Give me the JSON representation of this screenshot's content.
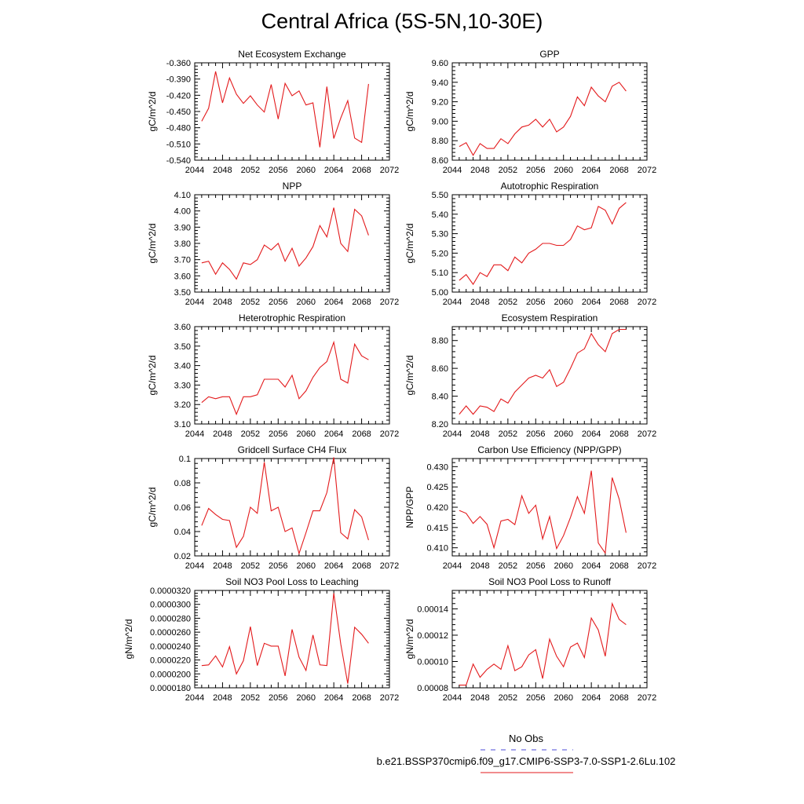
{
  "title": "Central Africa (5S-5N,10-30E)",
  "legend": {
    "items": [
      {
        "label": "No Obs",
        "color": "#4b4bd8",
        "style": "dashed"
      },
      {
        "label": "b.e21.BSSP370cmip6.f09_g17.CMIP6-SSP3-7.0-SSP1-2.6Lu.102",
        "color": "#e31a1c",
        "style": "solid"
      }
    ]
  },
  "series_color": "#e31a1c",
  "chart_data": [
    {
      "type": "line",
      "title": "Net Ecosystem Exchange",
      "ylabel": "gC/m^2/d",
      "xlim": [
        2044,
        2072
      ],
      "ylim": [
        -0.54,
        -0.36
      ],
      "xticks": [
        2044,
        2048,
        2052,
        2056,
        2060,
        2064,
        2068,
        2072
      ],
      "yticks": [
        "-0.360",
        "-0.390",
        "-0.420",
        "-0.450",
        "-0.480",
        "-0.510",
        "-0.540"
      ],
      "ytick_values": [
        -0.36,
        -0.39,
        -0.42,
        -0.45,
        -0.48,
        -0.51,
        -0.54
      ],
      "x": [
        2045,
        2046,
        2047,
        2048,
        2049,
        2050,
        2051,
        2052,
        2053,
        2054,
        2055,
        2056,
        2057,
        2058,
        2059,
        2060,
        2061,
        2062,
        2063,
        2064,
        2065,
        2066,
        2067,
        2068,
        2069
      ],
      "values": [
        -0.468,
        -0.444,
        -0.376,
        -0.434,
        -0.388,
        -0.418,
        -0.435,
        -0.421,
        -0.438,
        -0.451,
        -0.4,
        -0.464,
        -0.398,
        -0.421,
        -0.412,
        -0.438,
        -0.434,
        -0.516,
        -0.404,
        -0.5,
        -0.462,
        -0.43,
        -0.499,
        -0.507,
        -0.399
      ]
    },
    {
      "type": "line",
      "title": "GPP",
      "ylabel": "gC/m^2/d",
      "xlim": [
        2044,
        2072
      ],
      "ylim": [
        8.6,
        9.6
      ],
      "xticks": [
        2044,
        2048,
        2052,
        2056,
        2060,
        2064,
        2068,
        2072
      ],
      "yticks": [
        "8.60",
        "8.80",
        "9.00",
        "9.20",
        "9.40",
        "9.60"
      ],
      "ytick_values": [
        8.6,
        8.8,
        9.0,
        9.2,
        9.4,
        9.6
      ],
      "x": [
        2045,
        2046,
        2047,
        2048,
        2049,
        2050,
        2051,
        2052,
        2053,
        2054,
        2055,
        2056,
        2057,
        2058,
        2059,
        2060,
        2061,
        2062,
        2063,
        2064,
        2065,
        2066,
        2067,
        2068,
        2069
      ],
      "values": [
        8.74,
        8.78,
        8.65,
        8.77,
        8.72,
        8.72,
        8.82,
        8.77,
        8.87,
        8.94,
        8.96,
        9.02,
        8.94,
        9.02,
        8.89,
        8.94,
        9.05,
        9.25,
        9.16,
        9.35,
        9.26,
        9.2,
        9.36,
        9.4,
        9.31
      ]
    },
    {
      "type": "line",
      "title": "NPP",
      "ylabel": "gC/m^2/d",
      "xlim": [
        2044,
        2072
      ],
      "ylim": [
        3.5,
        4.1
      ],
      "xticks": [
        2044,
        2048,
        2052,
        2056,
        2060,
        2064,
        2068,
        2072
      ],
      "yticks": [
        "3.50",
        "3.60",
        "3.70",
        "3.80",
        "3.90",
        "4.00",
        "4.10"
      ],
      "ytick_values": [
        3.5,
        3.6,
        3.7,
        3.8,
        3.9,
        4.0,
        4.1
      ],
      "x": [
        2045,
        2046,
        2047,
        2048,
        2049,
        2050,
        2051,
        2052,
        2053,
        2054,
        2055,
        2056,
        2057,
        2058,
        2059,
        2060,
        2061,
        2062,
        2063,
        2064,
        2065,
        2066,
        2067,
        2068,
        2069
      ],
      "values": [
        3.68,
        3.69,
        3.61,
        3.68,
        3.64,
        3.58,
        3.68,
        3.67,
        3.7,
        3.79,
        3.76,
        3.8,
        3.69,
        3.77,
        3.66,
        3.71,
        3.78,
        3.91,
        3.84,
        4.02,
        3.8,
        3.75,
        4.01,
        3.97,
        3.85
      ]
    },
    {
      "type": "line",
      "title": "Autotrophic Respiration",
      "ylabel": "gC/m^2/d",
      "xlim": [
        2044,
        2072
      ],
      "ylim": [
        5.0,
        5.5
      ],
      "xticks": [
        2044,
        2048,
        2052,
        2056,
        2060,
        2064,
        2068,
        2072
      ],
      "yticks": [
        "5.00",
        "5.10",
        "5.20",
        "5.30",
        "5.40",
        "5.50"
      ],
      "ytick_values": [
        5.0,
        5.1,
        5.2,
        5.3,
        5.4,
        5.5
      ],
      "x": [
        2045,
        2046,
        2047,
        2048,
        2049,
        2050,
        2051,
        2052,
        2053,
        2054,
        2055,
        2056,
        2057,
        2058,
        2059,
        2060,
        2061,
        2062,
        2063,
        2064,
        2065,
        2066,
        2067,
        2068,
        2069
      ],
      "values": [
        5.06,
        5.09,
        5.04,
        5.1,
        5.08,
        5.14,
        5.14,
        5.11,
        5.18,
        5.15,
        5.2,
        5.22,
        5.25,
        5.25,
        5.24,
        5.24,
        5.27,
        5.34,
        5.32,
        5.33,
        5.44,
        5.42,
        5.35,
        5.43,
        5.46
      ]
    },
    {
      "type": "line",
      "title": "Heterotrophic Respiration",
      "ylabel": "gC/m^2/d",
      "xlim": [
        2044,
        2072
      ],
      "ylim": [
        3.1,
        3.6
      ],
      "xticks": [
        2044,
        2048,
        2052,
        2056,
        2060,
        2064,
        2068,
        2072
      ],
      "yticks": [
        "3.10",
        "3.20",
        "3.30",
        "3.40",
        "3.50",
        "3.60"
      ],
      "ytick_values": [
        3.1,
        3.2,
        3.3,
        3.4,
        3.5,
        3.6
      ],
      "x": [
        2045,
        2046,
        2047,
        2048,
        2049,
        2050,
        2051,
        2052,
        2053,
        2054,
        2055,
        2056,
        2057,
        2058,
        2059,
        2060,
        2061,
        2062,
        2063,
        2064,
        2065,
        2066,
        2067,
        2068,
        2069
      ],
      "values": [
        3.21,
        3.24,
        3.23,
        3.24,
        3.24,
        3.15,
        3.24,
        3.24,
        3.25,
        3.33,
        3.33,
        3.33,
        3.29,
        3.35,
        3.23,
        3.27,
        3.34,
        3.39,
        3.42,
        3.52,
        3.33,
        3.31,
        3.51,
        3.45,
        3.43
      ]
    },
    {
      "type": "line",
      "title": "Ecosystem Respiration",
      "ylabel": "gC/m^2/d",
      "xlim": [
        2044,
        2072
      ],
      "ylim": [
        8.2,
        8.9
      ],
      "xticks": [
        2044,
        2048,
        2052,
        2056,
        2060,
        2064,
        2068,
        2072
      ],
      "yticks": [
        "8.20",
        "8.40",
        "8.60",
        "8.80"
      ],
      "ytick_values": [
        8.2,
        8.4,
        8.6,
        8.8
      ],
      "x": [
        2045,
        2046,
        2047,
        2048,
        2049,
        2050,
        2051,
        2052,
        2053,
        2054,
        2055,
        2056,
        2057,
        2058,
        2059,
        2060,
        2061,
        2062,
        2063,
        2064,
        2065,
        2066,
        2067,
        2068,
        2069
      ],
      "values": [
        8.27,
        8.33,
        8.27,
        8.33,
        8.32,
        8.29,
        8.38,
        8.35,
        8.43,
        8.48,
        8.53,
        8.55,
        8.53,
        8.59,
        8.47,
        8.5,
        8.6,
        8.71,
        8.74,
        8.85,
        8.77,
        8.72,
        8.85,
        8.88,
        8.88
      ]
    },
    {
      "type": "line",
      "title": "Gridcell Surface CH4 Flux",
      "ylabel": "gC/m^2/d",
      "xlim": [
        2044,
        2072
      ],
      "ylim": [
        0.02,
        0.1
      ],
      "xticks": [
        2044,
        2048,
        2052,
        2056,
        2060,
        2064,
        2068,
        2072
      ],
      "yticks": [
        "0.02",
        "0.04",
        "0.06",
        "0.08",
        "0.1"
      ],
      "ytick_values": [
        0.02,
        0.04,
        0.06,
        0.08,
        0.1
      ],
      "x": [
        2045,
        2046,
        2047,
        2048,
        2049,
        2050,
        2051,
        2052,
        2053,
        2054,
        2055,
        2056,
        2057,
        2058,
        2059,
        2060,
        2061,
        2062,
        2063,
        2064,
        2065,
        2066,
        2067,
        2068,
        2069
      ],
      "values": [
        0.045,
        0.059,
        0.054,
        0.05,
        0.049,
        0.027,
        0.036,
        0.06,
        0.055,
        0.097,
        0.057,
        0.06,
        0.04,
        0.043,
        0.022,
        0.039,
        0.057,
        0.057,
        0.072,
        0.101,
        0.039,
        0.034,
        0.058,
        0.052,
        0.033
      ]
    },
    {
      "type": "line",
      "title": "Carbon Use Efficiency (NPP/GPP)",
      "ylabel": "NPP/GPP",
      "xlim": [
        2044,
        2072
      ],
      "ylim": [
        0.408,
        0.432
      ],
      "xticks": [
        2044,
        2048,
        2052,
        2056,
        2060,
        2064,
        2068,
        2072
      ],
      "yticks": [
        "0.410",
        "0.415",
        "0.420",
        "0.425",
        "0.430"
      ],
      "ytick_values": [
        0.41,
        0.415,
        0.42,
        0.425,
        0.43
      ],
      "x": [
        2045,
        2046,
        2047,
        2048,
        2049,
        2050,
        2051,
        2052,
        2053,
        2054,
        2055,
        2056,
        2057,
        2058,
        2059,
        2060,
        2061,
        2062,
        2063,
        2064,
        2065,
        2066,
        2067,
        2068,
        2069
      ],
      "values": [
        0.4192,
        0.4185,
        0.416,
        0.4177,
        0.4158,
        0.41,
        0.4166,
        0.417,
        0.4157,
        0.4228,
        0.4185,
        0.4205,
        0.4122,
        0.4177,
        0.4098,
        0.413,
        0.4175,
        0.4226,
        0.4185,
        0.429,
        0.4112,
        0.4087,
        0.4273,
        0.422,
        0.4137
      ]
    },
    {
      "type": "line",
      "title": "Soil NO3 Pool Loss to Leaching",
      "ylabel": "gN/m^2/d",
      "xlim": [
        2044,
        2072
      ],
      "ylim": [
        1.8e-05,
        3.2e-05
      ],
      "xticks": [
        2044,
        2048,
        2052,
        2056,
        2060,
        2064,
        2068,
        2072
      ],
      "yticks": [
        "0.0000180",
        "0.0000200",
        "0.0000220",
        "0.0000240",
        "0.0000260",
        "0.0000280",
        "0.0000300",
        "0.0000320"
      ],
      "ytick_values": [
        1.8e-05,
        2e-05,
        2.2e-05,
        2.4e-05,
        2.6e-05,
        2.8e-05,
        3e-05,
        3.2e-05
      ],
      "x": [
        2045,
        2046,
        2047,
        2048,
        2049,
        2050,
        2051,
        2052,
        2053,
        2054,
        2055,
        2056,
        2057,
        2058,
        2059,
        2060,
        2061,
        2062,
        2063,
        2064,
        2065,
        2066,
        2067,
        2068,
        2069
      ],
      "values": [
        2.12e-05,
        2.13e-05,
        2.26e-05,
        2.1e-05,
        2.39e-05,
        2e-05,
        2.19e-05,
        2.68e-05,
        2.12e-05,
        2.44e-05,
        2.4e-05,
        2.4e-05,
        1.97e-05,
        2.64e-05,
        2.24e-05,
        2.05e-05,
        2.56e-05,
        2.13e-05,
        2.12e-05,
        3.16e-05,
        2.43e-05,
        1.86e-05,
        2.67e-05,
        2.57e-05,
        2.44e-05
      ]
    },
    {
      "type": "line",
      "title": "Soil NO3 Pool Loss to Runoff",
      "ylabel": "gN/m^2/d",
      "xlim": [
        2044,
        2072
      ],
      "ylim": [
        8e-05,
        0.000154
      ],
      "xticks": [
        2044,
        2048,
        2052,
        2056,
        2060,
        2064,
        2068,
        2072
      ],
      "yticks": [
        "0.00008",
        "0.00010",
        "0.00012",
        "0.00014"
      ],
      "ytick_values": [
        8e-05,
        0.0001,
        0.00012,
        0.00014
      ],
      "x": [
        2045,
        2046,
        2047,
        2048,
        2049,
        2050,
        2051,
        2052,
        2053,
        2054,
        2055,
        2056,
        2057,
        2058,
        2059,
        2060,
        2061,
        2062,
        2063,
        2064,
        2065,
        2066,
        2067,
        2068,
        2069
      ],
      "values": [
        8.2e-05,
        8.2e-05,
        9.8e-05,
        8.8e-05,
        9.4e-05,
        9.8e-05,
        9.4e-05,
        0.000112,
        9.3e-05,
        9.6e-05,
        0.000105,
        0.000109,
        8.7e-05,
        0.000117,
        0.000104,
        9.6e-05,
        0.000111,
        0.000114,
        0.000103,
        0.000133,
        0.000124,
        0.000104,
        0.000144,
        0.000132,
        0.000128
      ]
    }
  ]
}
